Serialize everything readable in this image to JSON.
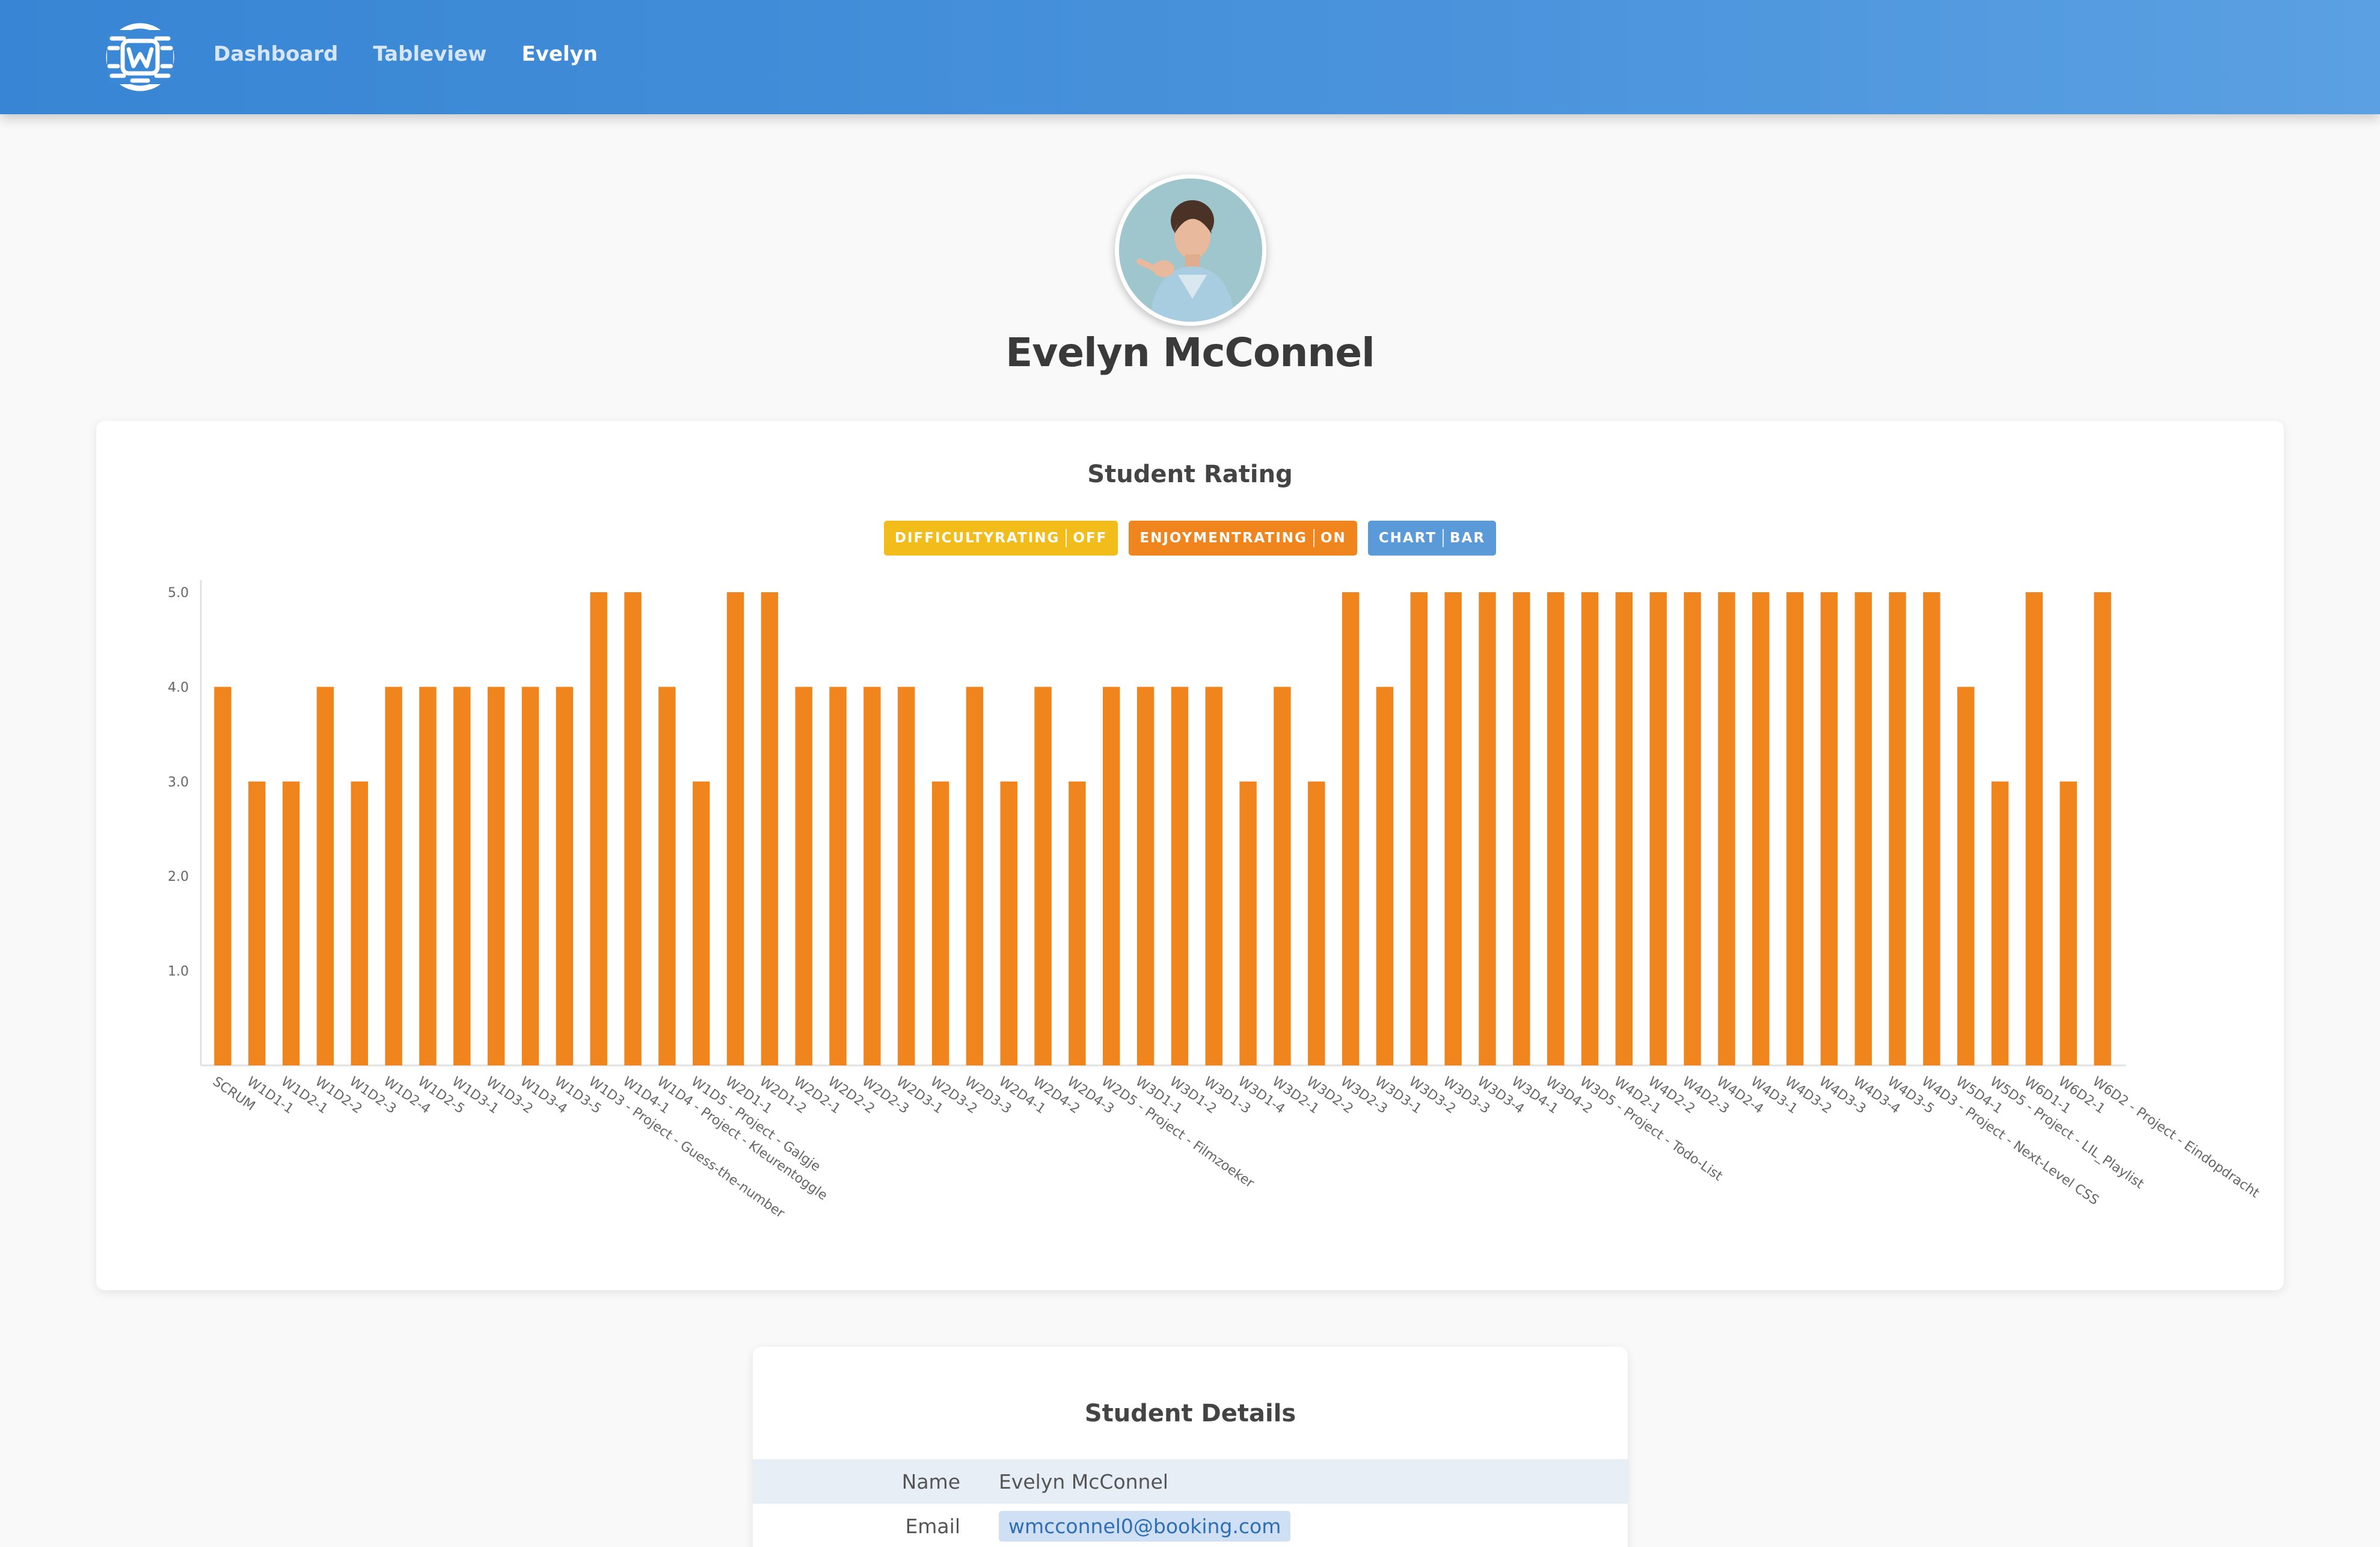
{
  "nav": {
    "items": [
      {
        "label": "Dashboard",
        "active": false
      },
      {
        "label": "Tableview",
        "active": false
      },
      {
        "label": "Evelyn",
        "active": true
      }
    ]
  },
  "profile": {
    "name": "Evelyn McConnel"
  },
  "chart_card": {
    "title": "Student Rating",
    "toggles": [
      {
        "name": "DIFFICULTYRATING",
        "state": "OFF",
        "color": "#f2bc1b"
      },
      {
        "name": "ENJOYMENTRATING",
        "state": "ON",
        "color": "#f0851e"
      },
      {
        "name": "CHART",
        "state": "BAR",
        "color": "#5b9ad9"
      }
    ]
  },
  "chart_data": {
    "type": "bar",
    "bar_color": "#f0851e",
    "ylim": [
      0,
      5
    ],
    "yticks": [
      "1.0",
      "2.0",
      "3.0",
      "4.0",
      "5.0"
    ],
    "ytick_values": [
      1,
      2,
      3,
      4,
      5
    ],
    "categories": [
      "SCRUM",
      "W1D1-1",
      "W1D2-1",
      "W1D2-2",
      "W1D2-3",
      "W1D2-4",
      "W1D2-5",
      "W1D3-1",
      "W1D3-2",
      "W1D3-4",
      "W1D3-5",
      "W1D3 - Project - Guess-the-number",
      "W1D4-1",
      "W1D4 - Project - Kleurentoggle",
      "W1D5 - Project - Galgje",
      "W2D1-1",
      "W2D1-2",
      "W2D2-1",
      "W2D2-2",
      "W2D2-3",
      "W2D3-1",
      "W2D3-2",
      "W2D3-3",
      "W2D4-1",
      "W2D4-2",
      "W2D4-3",
      "W2D5 - Project - Filmzoeker",
      "W3D1-1",
      "W3D1-2",
      "W3D1-3",
      "W3D1-4",
      "W3D2-1",
      "W3D2-2",
      "W3D2-3",
      "W3D3-1",
      "W3D3-2",
      "W3D3-3",
      "W3D3-4",
      "W3D4-1",
      "W3D4-2",
      "W3D5 - Project - Todo-List",
      "W4D2-1",
      "W4D2-2",
      "W4D2-3",
      "W4D2-4",
      "W4D3-1",
      "W4D3-2",
      "W4D3-3",
      "W4D3-4",
      "W4D3-5",
      "W4D3 - Project - Next-Level CSS",
      "W5D4-1",
      "W5D5 - Project - LIL_Playlist",
      "W6D1-1",
      "W6D2-1",
      "W6D2 - Project - Eindopdracht"
    ],
    "values": [
      4,
      3,
      3,
      4,
      3,
      4,
      4,
      4,
      4,
      4,
      4,
      5,
      5,
      4,
      3,
      5,
      5,
      4,
      4,
      4,
      4,
      3,
      4,
      3,
      4,
      3,
      4,
      4,
      4,
      4,
      3,
      4,
      3,
      5,
      4,
      5,
      5,
      5,
      5,
      5,
      5,
      5,
      5,
      5,
      5,
      5,
      5,
      5,
      5,
      5,
      5,
      4,
      3,
      5,
      3,
      5
    ]
  },
  "details": {
    "title": "Student Details",
    "rows": [
      {
        "label": "Name",
        "value": "Evelyn McConnel"
      },
      {
        "label": "Email",
        "value": "wmcconnel0@booking.com"
      }
    ]
  }
}
